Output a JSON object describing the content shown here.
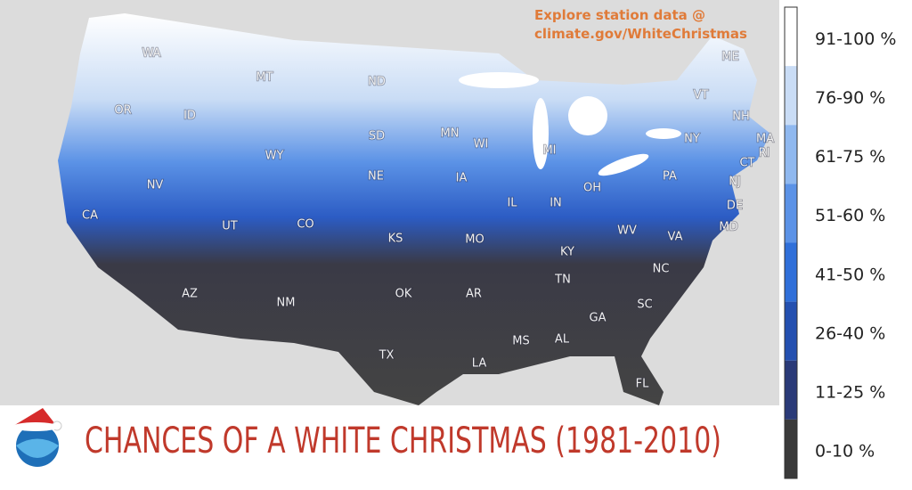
{
  "note": [
    "Explore station data @",
    "climate.gov/WhiteChristmas"
  ],
  "title": "CHANCES OF A WHITE CHRISTMAS (1981-2010)",
  "legend": [
    {
      "label": "91-100 %",
      "color": "#ffffff"
    },
    {
      "label": "76-90 %",
      "color": "#c9dcf5"
    },
    {
      "label": "61-75 %",
      "color": "#8fb8ef"
    },
    {
      "label": "51-60 %",
      "color": "#5b92e6"
    },
    {
      "label": "41-50 %",
      "color": "#2f6fd9"
    },
    {
      "label": "26-40 %",
      "color": "#2450b0"
    },
    {
      "label": "11-25 %",
      "color": "#2a3a78"
    },
    {
      "label": "0-10 %",
      "color": "#3a3a3a"
    }
  ],
  "states": [
    "WA",
    "MT",
    "ND",
    "MN",
    "ME",
    "VT",
    "NH",
    "MA",
    "RI",
    "CT",
    "NY",
    "MI",
    "WI",
    "SD",
    "ID",
    "OR",
    "WY",
    "NE",
    "IA",
    "IL",
    "IN",
    "OH",
    "PA",
    "NJ",
    "DE",
    "MD",
    "NV",
    "UT",
    "CO",
    "KS",
    "MO",
    "KY",
    "WV",
    "VA",
    "CA",
    "AZ",
    "NM",
    "OK",
    "AR",
    "TN",
    "NC",
    "SC",
    "GA",
    "AL",
    "MS",
    "TX",
    "LA",
    "FL"
  ]
}
